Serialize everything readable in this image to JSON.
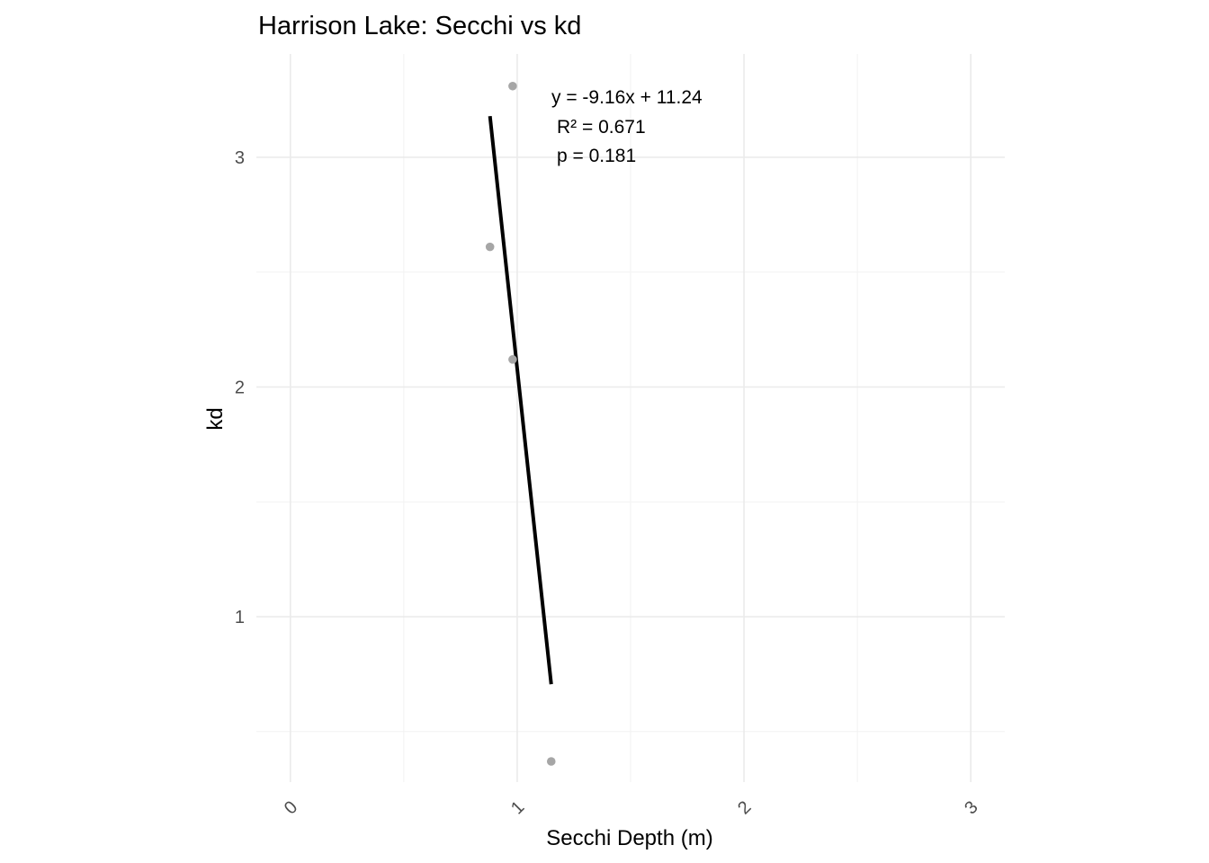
{
  "chart_data": {
    "type": "scatter",
    "title": "Harrison Lake: Secchi vs kd",
    "xlabel": "Secchi Depth (m)",
    "ylabel": "kd",
    "xlim": [
      -0.15,
      3.15
    ],
    "ylim": [
      0.28,
      3.45
    ],
    "x_ticks": [
      0,
      1,
      2,
      3
    ],
    "x_tick_labels": [
      "0",
      "1",
      "2",
      "3"
    ],
    "y_ticks": [
      1,
      2,
      3
    ],
    "y_tick_labels": [
      "1",
      "2",
      "3"
    ],
    "x_minor_ticks": [
      0.5,
      1.5,
      2.5
    ],
    "y_minor_ticks": [
      0.5,
      1.5,
      2.5
    ],
    "grid": true,
    "points": [
      {
        "x": 0.98,
        "y": 3.31
      },
      {
        "x": 0.88,
        "y": 2.61
      },
      {
        "x": 0.98,
        "y": 2.12
      },
      {
        "x": 1.15,
        "y": 0.37
      }
    ],
    "point_color": "#a6a6a6",
    "fit": {
      "slope": -9.16,
      "intercept": 11.24,
      "x_range": [
        0.88,
        1.15
      ],
      "color": "#000000"
    },
    "annotations": [
      "y = -9.16x + 11.24",
      "R² = 0.671",
      "p = 0.181"
    ]
  }
}
